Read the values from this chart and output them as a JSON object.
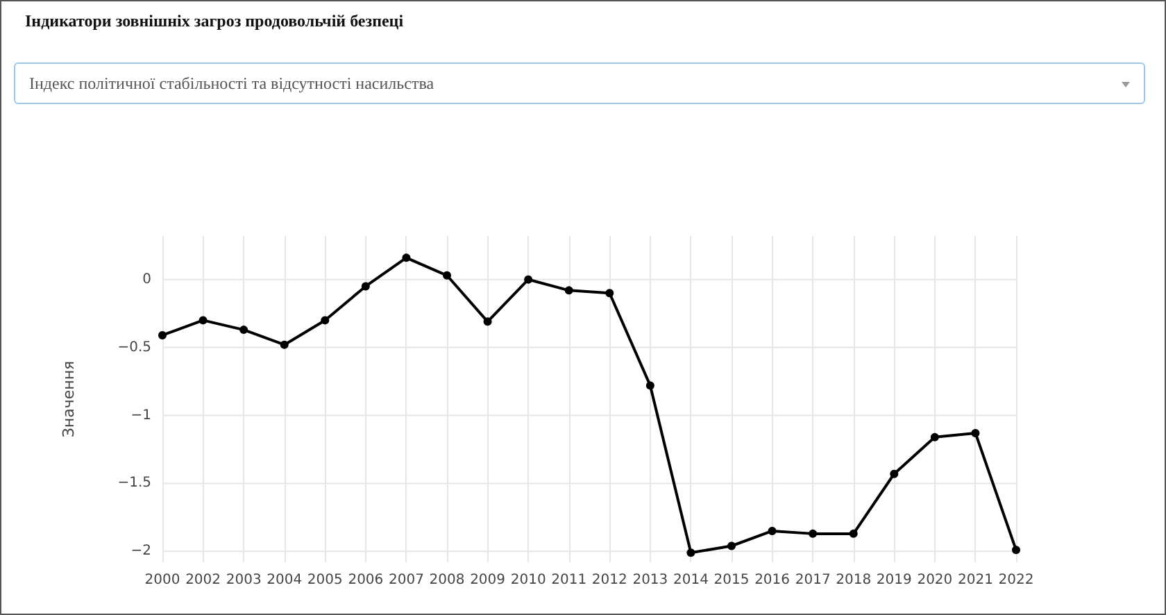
{
  "chart_data": {
    "type": "line",
    "title": "Індикатори зовнішніх загроз продовольчій безпеці",
    "subtitle": "Індекс політичної стабільності та відсутності насильства",
    "ylabel": "Значення",
    "categories": [
      "2000",
      "2002",
      "2003",
      "2004",
      "2005",
      "2006",
      "2007",
      "2008",
      "2009",
      "2010",
      "2011",
      "2012",
      "2013",
      "2014",
      "2015",
      "2016",
      "2017",
      "2018",
      "2019",
      "2020",
      "2021",
      "2022"
    ],
    "series": [
      {
        "color": "#000000",
        "values": [
          -0.41,
          -0.3,
          -0.37,
          -0.48,
          -0.3,
          -0.05,
          0.16,
          0.03,
          -0.31,
          0.0,
          -0.08,
          -0.1,
          -0.78,
          -2.01,
          -1.96,
          -1.85,
          -1.87,
          -1.87,
          -1.43,
          -1.16,
          -1.13,
          -1.99
        ]
      }
    ],
    "ylim": [
      -2.08,
      0.32
    ],
    "yticks": [
      {
        "value": -2,
        "label": "−2"
      },
      {
        "value": -1.5,
        "label": "−1.5"
      },
      {
        "value": -1,
        "label": "−1"
      },
      {
        "value": -0.5,
        "label": "−0.5"
      },
      0
    ],
    "grid": true,
    "marker": "circle",
    "line_style": "solid"
  }
}
